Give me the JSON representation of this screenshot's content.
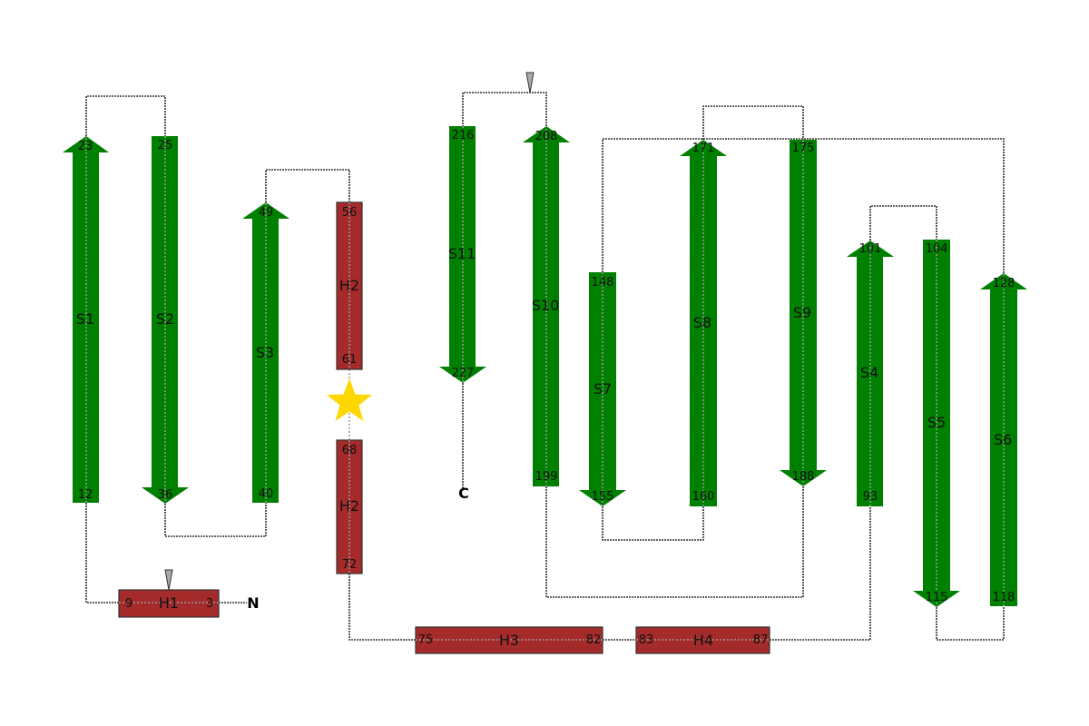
{
  "colors": {
    "strand": "#008000",
    "helix": "#a52a2a",
    "helix_border": "#333333",
    "marker": "#ffd700",
    "connector": "#333333",
    "triangle": "#aaaaaa"
  },
  "termini": {
    "n": "N",
    "c": "C"
  },
  "strands": [
    {
      "id": "S1",
      "label": "S1",
      "direction": "up",
      "start": "12",
      "end": "23"
    },
    {
      "id": "S2",
      "label": "S2",
      "direction": "down",
      "start": "25",
      "end": "36"
    },
    {
      "id": "S3",
      "label": "S3",
      "direction": "up",
      "start": "40",
      "end": "49"
    },
    {
      "id": "S4",
      "label": "S4",
      "direction": "up",
      "start": "93",
      "end": "101"
    },
    {
      "id": "S5",
      "label": "S5",
      "direction": "down",
      "start": "104",
      "end": "115"
    },
    {
      "id": "S6",
      "label": "S6",
      "direction": "up",
      "start": "118",
      "end": "128"
    },
    {
      "id": "S7",
      "label": "S7",
      "direction": "down",
      "start": "148",
      "end": "155"
    },
    {
      "id": "S8",
      "label": "S8",
      "direction": "up",
      "start": "160",
      "end": "171"
    },
    {
      "id": "S9",
      "label": "S9",
      "direction": "down",
      "start": "175",
      "end": "188"
    },
    {
      "id": "S10",
      "label": "S10",
      "direction": "up",
      "start": "199",
      "end": "208"
    },
    {
      "id": "S11",
      "label": "S11",
      "direction": "down",
      "start": "216",
      "end": "227"
    }
  ],
  "helices": [
    {
      "id": "H1",
      "label": "H1",
      "orientation": "horizontal",
      "start": "3",
      "end": "9"
    },
    {
      "id": "H2a",
      "label": "H2",
      "orientation": "vertical",
      "start": "56",
      "end": "61"
    },
    {
      "id": "H2b",
      "label": "H2",
      "orientation": "vertical",
      "start": "68",
      "end": "72"
    },
    {
      "id": "H3",
      "label": "H3",
      "orientation": "horizontal",
      "start": "75",
      "end": "82"
    },
    {
      "id": "H4",
      "label": "H4",
      "orientation": "horizontal",
      "start": "83",
      "end": "87"
    }
  ]
}
